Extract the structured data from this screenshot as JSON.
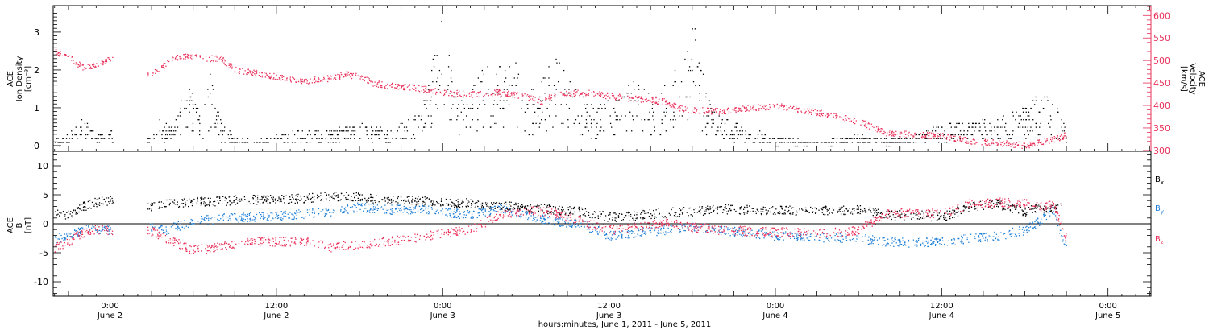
{
  "colors": {
    "black": "#000000",
    "pink": "#e8305a",
    "blue": "#1e7fd6",
    "axis": "#000000"
  },
  "xaxis": {
    "label": "hours:minutes, June  1, 2011 - June  5, 2011",
    "ticks": [
      {
        "t": 24,
        "time": "0:00",
        "date": "June 2"
      },
      {
        "t": 36,
        "time": "12:00",
        "date": "June 2"
      },
      {
        "t": 48,
        "time": "0:00",
        "date": "June 3"
      },
      {
        "t": 60,
        "time": "12:00",
        "date": "June 3"
      },
      {
        "t": 72,
        "time": "0:00",
        "date": "June 4"
      },
      {
        "t": 84,
        "time": "12:00",
        "date": "June 4"
      },
      {
        "t": 96,
        "time": "0:00",
        "date": "June 5"
      }
    ]
  },
  "chart_data": [
    {
      "type": "scatter",
      "panel": "top",
      "xlim_hours_since_june1": [
        19.9,
        99.1
      ],
      "left_axis": {
        "label_lines": [
          "ACE",
          "Ion Density",
          "[cm⁻³]"
        ],
        "ylim": [
          -0.15,
          3.7
        ],
        "ticks": [
          0,
          1,
          2,
          3
        ]
      },
      "right_axis": {
        "label_lines": [
          "ACE",
          "Velocity",
          "[km/s]"
        ],
        "ylim": [
          298,
          622
        ],
        "ticks": [
          300,
          350,
          400,
          450,
          500,
          550,
          600
        ]
      },
      "series": [
        {
          "name": "Ion Density",
          "axis": "left",
          "color": "#000000",
          "points": [
            [
              20.0,
              0.1
            ],
            [
              21.0,
              0.2
            ],
            [
              22.0,
              0.5
            ],
            [
              23.0,
              0.2
            ],
            [
              24.0,
              0.3
            ],
            [
              26.8,
              0.2
            ],
            [
              27.5,
              0.5
            ],
            [
              28.5,
              0.3
            ],
            [
              29.5,
              1.2
            ],
            [
              30.5,
              0.6
            ],
            [
              31.2,
              1.3
            ],
            [
              32.0,
              0.4
            ],
            [
              33.0,
              0.2
            ],
            [
              34.0,
              0.1
            ],
            [
              36.0,
              0.2
            ],
            [
              38.0,
              0.3
            ],
            [
              40.0,
              0.3
            ],
            [
              42.0,
              0.4
            ],
            [
              44.0,
              0.3
            ],
            [
              46.0,
              0.6
            ],
            [
              47.0,
              1.2
            ],
            [
              48.0,
              2.6
            ],
            [
              49.0,
              0.8
            ],
            [
              50.0,
              1.0
            ],
            [
              51.0,
              1.5
            ],
            [
              52.0,
              1.4
            ],
            [
              53.0,
              1.8
            ],
            [
              54.0,
              1.0
            ],
            [
              55.0,
              1.1
            ],
            [
              56.0,
              1.7
            ],
            [
              57.0,
              1.2
            ],
            [
              58.0,
              0.9
            ],
            [
              59.0,
              0.7
            ],
            [
              60.0,
              0.8
            ],
            [
              61.0,
              0.9
            ],
            [
              62.0,
              1.5
            ],
            [
              63.0,
              0.8
            ],
            [
              64.0,
              1.1
            ],
            [
              65.0,
              1.6
            ],
            [
              66.0,
              2.3
            ],
            [
              67.0,
              1.0
            ],
            [
              68.0,
              0.6
            ],
            [
              70.0,
              0.3
            ],
            [
              72.0,
              0.15
            ],
            [
              74.0,
              0.1
            ],
            [
              76.0,
              0.1
            ],
            [
              78.0,
              0.2
            ],
            [
              80.0,
              0.1
            ],
            [
              82.0,
              0.2
            ],
            [
              84.0,
              0.4
            ],
            [
              86.0,
              0.5
            ],
            [
              88.0,
              0.5
            ],
            [
              90.0,
              0.7
            ],
            [
              91.0,
              1.0
            ],
            [
              92.0,
              0.9
            ],
            [
              93.0,
              0.3
            ]
          ]
        },
        {
          "name": "Velocity",
          "axis": "right",
          "color": "#e8305a",
          "points": [
            [
              20.0,
              520
            ],
            [
              21.0,
              510
            ],
            [
              22.0,
              485
            ],
            [
              23.0,
              490
            ],
            [
              24.0,
              505
            ],
            [
              26.8,
              465
            ],
            [
              27.5,
              480
            ],
            [
              28.5,
              505
            ],
            [
              29.5,
              510
            ],
            [
              31.0,
              505
            ],
            [
              32.0,
              505
            ],
            [
              33.0,
              480
            ],
            [
              34.0,
              475
            ],
            [
              36.0,
              465
            ],
            [
              38.0,
              455
            ],
            [
              40.0,
              462
            ],
            [
              41.0,
              470
            ],
            [
              42.0,
              465
            ],
            [
              43.0,
              450
            ],
            [
              44.0,
              445
            ],
            [
              46.0,
              440
            ],
            [
              48.0,
              430
            ],
            [
              50.0,
              425
            ],
            [
              52.0,
              430
            ],
            [
              54.0,
              420
            ],
            [
              55.0,
              408
            ],
            [
              56.0,
              425
            ],
            [
              58.0,
              430
            ],
            [
              60.0,
              422
            ],
            [
              62.0,
              415
            ],
            [
              64.0,
              410
            ],
            [
              65.0,
              395
            ],
            [
              66.0,
              390
            ],
            [
              68.0,
              388
            ],
            [
              70.0,
              395
            ],
            [
              72.0,
              400
            ],
            [
              74.0,
              390
            ],
            [
              76.0,
              380
            ],
            [
              78.0,
              365
            ],
            [
              80.0,
              340
            ],
            [
              82.0,
              336
            ],
            [
              84.0,
              332
            ],
            [
              86.0,
              322
            ],
            [
              88.0,
              318
            ],
            [
              90.0,
              312
            ],
            [
              91.0,
              318
            ],
            [
              92.0,
              325
            ],
            [
              93.0,
              335
            ]
          ]
        }
      ]
    },
    {
      "type": "scatter",
      "panel": "bottom",
      "xlim_hours_since_june1": [
        19.9,
        99.1
      ],
      "left_axis": {
        "label_lines": [
          "ACE",
          "B",
          "[nT]"
        ],
        "ylim": [
          -12.5,
          12.5
        ],
        "ticks": [
          -10,
          -5,
          0,
          5,
          10
        ]
      },
      "legend": [
        {
          "text": "B",
          "sub": "x",
          "color": "#000000"
        },
        {
          "text": "B",
          "sub": "y",
          "color": "#1e7fd6"
        },
        {
          "text": "B",
          "sub": "z",
          "color": "#e8305a"
        }
      ],
      "series": [
        {
          "name": "Bx",
          "color": "#000000",
          "points": [
            [
              20.0,
              2.0
            ],
            [
              21.0,
              1.5
            ],
            [
              22.0,
              3.0
            ],
            [
              23.0,
              3.8
            ],
            [
              24.0,
              4.0
            ],
            [
              26.8,
              3.0
            ],
            [
              28.0,
              3.5
            ],
            [
              30.0,
              3.8
            ],
            [
              32.0,
              4.0
            ],
            [
              34.0,
              4.2
            ],
            [
              36.0,
              4.3
            ],
            [
              38.0,
              4.5
            ],
            [
              40.0,
              4.8
            ],
            [
              42.0,
              4.6
            ],
            [
              44.0,
              4.2
            ],
            [
              46.0,
              4.0
            ],
            [
              48.0,
              3.8
            ],
            [
              50.0,
              3.6
            ],
            [
              52.0,
              3.2
            ],
            [
              54.0,
              2.8
            ],
            [
              56.0,
              2.5
            ],
            [
              58.0,
              2.2
            ],
            [
              60.0,
              1.2
            ],
            [
              62.0,
              1.5
            ],
            [
              64.0,
              2.0
            ],
            [
              66.0,
              2.2
            ],
            [
              68.0,
              2.6
            ],
            [
              70.0,
              2.5
            ],
            [
              72.0,
              2.3
            ],
            [
              74.0,
              2.4
            ],
            [
              76.0,
              2.4
            ],
            [
              78.0,
              2.5
            ],
            [
              80.0,
              1.5
            ],
            [
              82.0,
              1.6
            ],
            [
              84.0,
              1.2
            ],
            [
              86.0,
              3.0
            ],
            [
              88.0,
              3.5
            ],
            [
              90.0,
              2.0
            ],
            [
              91.0,
              3.0
            ],
            [
              92.0,
              2.5
            ],
            [
              93.0,
              3.5
            ]
          ]
        },
        {
          "name": "By",
          "color": "#1e7fd6",
          "points": [
            [
              20.0,
              -2.5
            ],
            [
              21.0,
              -2.0
            ],
            [
              22.0,
              -1.0
            ],
            [
              23.0,
              -0.8
            ],
            [
              24.0,
              -1.0
            ],
            [
              26.8,
              -0.5
            ],
            [
              28.0,
              -1.0
            ],
            [
              30.0,
              0.5
            ],
            [
              32.0,
              1.0
            ],
            [
              34.0,
              1.2
            ],
            [
              36.0,
              1.4
            ],
            [
              38.0,
              1.8
            ],
            [
              40.0,
              2.2
            ],
            [
              42.0,
              3.0
            ],
            [
              44.0,
              2.5
            ],
            [
              46.0,
              2.6
            ],
            [
              48.0,
              2.2
            ],
            [
              50.0,
              1.5
            ],
            [
              52.0,
              2.8
            ],
            [
              54.0,
              1.5
            ],
            [
              56.0,
              0.5
            ],
            [
              58.0,
              0.0
            ],
            [
              60.0,
              -2.0
            ],
            [
              62.0,
              -1.5
            ],
            [
              64.0,
              -1.0
            ],
            [
              66.0,
              -0.5
            ],
            [
              68.0,
              -1.0
            ],
            [
              70.0,
              -1.5
            ],
            [
              72.0,
              -2.0
            ],
            [
              74.0,
              -2.2
            ],
            [
              76.0,
              -2.3
            ],
            [
              78.0,
              -2.5
            ],
            [
              80.0,
              -3.0
            ],
            [
              82.0,
              -3.2
            ],
            [
              84.0,
              -3.0
            ],
            [
              86.0,
              -2.5
            ],
            [
              88.0,
              -2.0
            ],
            [
              90.0,
              -1.0
            ],
            [
              91.0,
              0.5
            ],
            [
              92.0,
              2.5
            ],
            [
              93.0,
              -4.5
            ]
          ]
        },
        {
          "name": "Bz",
          "color": "#e8305a",
          "points": [
            [
              20.0,
              -4.0
            ],
            [
              21.0,
              -3.0
            ],
            [
              22.0,
              -1.5
            ],
            [
              23.0,
              -1.0
            ],
            [
              24.0,
              -1.0
            ],
            [
              26.8,
              -1.0
            ],
            [
              28.0,
              -2.5
            ],
            [
              30.0,
              -4.5
            ],
            [
              32.0,
              -4.0
            ],
            [
              34.0,
              -3.0
            ],
            [
              36.0,
              -3.0
            ],
            [
              38.0,
              -3.0
            ],
            [
              40.0,
              -4.0
            ],
            [
              42.0,
              -3.5
            ],
            [
              44.0,
              -3.0
            ],
            [
              46.0,
              -2.5
            ],
            [
              48.0,
              -1.5
            ],
            [
              50.0,
              -1.0
            ],
            [
              52.0,
              1.5
            ],
            [
              54.0,
              2.5
            ],
            [
              56.0,
              2.0
            ],
            [
              58.0,
              0.5
            ],
            [
              60.0,
              -1.0
            ],
            [
              62.0,
              -0.5
            ],
            [
              64.0,
              0.5
            ],
            [
              66.0,
              -0.5
            ],
            [
              68.0,
              -1.0
            ],
            [
              70.0,
              -1.2
            ],
            [
              72.0,
              -1.3
            ],
            [
              74.0,
              -1.5
            ],
            [
              76.0,
              -1.5
            ],
            [
              78.0,
              -1.0
            ],
            [
              80.0,
              1.8
            ],
            [
              82.0,
              2.0
            ],
            [
              84.0,
              1.8
            ],
            [
              86.0,
              3.5
            ],
            [
              88.0,
              3.8
            ],
            [
              90.0,
              3.5
            ],
            [
              91.0,
              3.0
            ],
            [
              92.0,
              3.5
            ],
            [
              93.0,
              -2.5
            ]
          ]
        }
      ]
    }
  ]
}
